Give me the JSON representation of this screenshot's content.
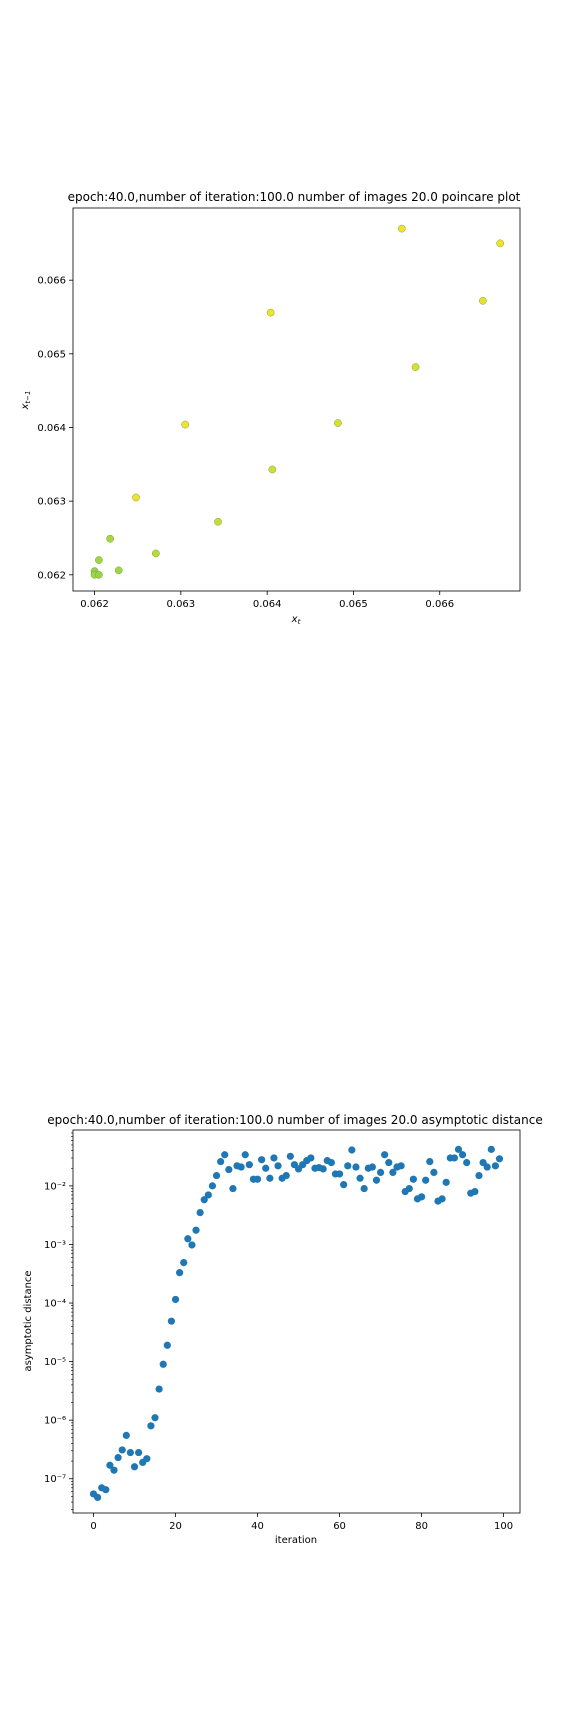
{
  "chart_data": [
    {
      "type": "scatter",
      "title": "epoch:40.0,number of iteration:100.0 number of images 20.0 poincare plot",
      "xlabel": "x_t",
      "ylabel": "x_{t-1}",
      "xlim": [
        0.06175,
        0.06693
      ],
      "ylim": [
        0.06178,
        0.06698
      ],
      "x_ticks": [
        0.062,
        0.063,
        0.064,
        0.065,
        0.066
      ],
      "x_tick_labels": [
        "0.062",
        "0.063",
        "0.064",
        "0.065",
        "0.066"
      ],
      "y_ticks": [
        0.062,
        0.063,
        0.064,
        0.065,
        0.066
      ],
      "y_tick_labels": [
        "0.062",
        "0.063",
        "0.064",
        "0.065",
        "0.066"
      ],
      "colormap": "viridis-yellow-green",
      "points": [
        {
          "x": 0.062,
          "y": 0.06205,
          "c": 0.35
        },
        {
          "x": 0.062,
          "y": 0.062,
          "c": 0.3
        },
        {
          "x": 0.06205,
          "y": 0.0622,
          "c": 0.3
        },
        {
          "x": 0.06205,
          "y": 0.062,
          "c": 0.32
        },
        {
          "x": 0.06218,
          "y": 0.06249,
          "c": 0.28
        },
        {
          "x": 0.06228,
          "y": 0.06206,
          "c": 0.3
        },
        {
          "x": 0.06248,
          "y": 0.06305,
          "c": 0.05
        },
        {
          "x": 0.06271,
          "y": 0.06229,
          "c": 0.22
        },
        {
          "x": 0.06305,
          "y": 0.06404,
          "c": 0.05
        },
        {
          "x": 0.06343,
          "y": 0.06272,
          "c": 0.18
        },
        {
          "x": 0.06404,
          "y": 0.06556,
          "c": 0.05
        },
        {
          "x": 0.06406,
          "y": 0.06343,
          "c": 0.15
        },
        {
          "x": 0.06482,
          "y": 0.06406,
          "c": 0.12
        },
        {
          "x": 0.06556,
          "y": 0.0667,
          "c": 0.05
        },
        {
          "x": 0.06572,
          "y": 0.06482,
          "c": 0.12
        },
        {
          "x": 0.0665,
          "y": 0.06572,
          "c": 0.08
        },
        {
          "x": 0.0667,
          "y": 0.0665,
          "c": 0.05
        }
      ]
    },
    {
      "type": "scatter",
      "title": "epoch:40.0,number of iteration:100.0  number of images 20.0 asymptotic distance",
      "xlabel": "iteration",
      "ylabel": "asymptotic distance",
      "yscale": "log",
      "xlim": [
        -5,
        104
      ],
      "ylim": [
        2.6e-08,
        0.09
      ],
      "x_ticks": [
        0,
        20,
        40,
        60,
        80,
        100
      ],
      "x_tick_labels": [
        "0",
        "20",
        "40",
        "60",
        "80",
        "100"
      ],
      "y_ticks": [
        1e-07,
        1e-06,
        1e-05,
        0.0001,
        0.001,
        0.01
      ],
      "y_tick_labels": [
        "10⁻⁷",
        "10⁻⁶",
        "10⁻⁵",
        "10⁻⁴",
        "10⁻³",
        "10⁻²"
      ],
      "color": "#1f77b4",
      "x": [
        0,
        1,
        2,
        3,
        4,
        5,
        6,
        7,
        8,
        9,
        10,
        11,
        12,
        13,
        14,
        15,
        16,
        17,
        18,
        19,
        20,
        21,
        22,
        23,
        24,
        25,
        26,
        27,
        28,
        29,
        30,
        31,
        32,
        33,
        34,
        35,
        36,
        37,
        38,
        39,
        40,
        41,
        42,
        43,
        44,
        45,
        46,
        47,
        48,
        49,
        50,
        51,
        52,
        53,
        54,
        55,
        56,
        57,
        58,
        59,
        60,
        61,
        62,
        63,
        64,
        65,
        66,
        67,
        68,
        69,
        70,
        71,
        72,
        73,
        74,
        75,
        76,
        77,
        78,
        79,
        80,
        81,
        82,
        83,
        84,
        85,
        86,
        87,
        88,
        89,
        90,
        91,
        92,
        93,
        94,
        95,
        96,
        97,
        98,
        99
      ],
      "y": [
        5.5e-08,
        4.8e-08,
        7e-08,
        6.5e-08,
        1.7e-07,
        1.4e-07,
        2.3e-07,
        3.1e-07,
        5.5e-07,
        2.8e-07,
        1.6e-07,
        2.8e-07,
        1.9e-07,
        2.2e-07,
        8e-07,
        1.1e-06,
        3.4e-06,
        9e-06,
        1.9e-05,
        4.9e-05,
        0.000115,
        0.00033,
        0.00049,
        0.00125,
        0.00098,
        0.00175,
        0.0035,
        0.0058,
        0.007,
        0.01,
        0.015,
        0.026,
        0.034,
        0.019,
        0.009,
        0.022,
        0.021,
        0.034,
        0.023,
        0.013,
        0.013,
        0.028,
        0.02,
        0.0135,
        0.03,
        0.022,
        0.0135,
        0.015,
        0.032,
        0.023,
        0.0195,
        0.023,
        0.027,
        0.03,
        0.02,
        0.0205,
        0.0195,
        0.027,
        0.025,
        0.016,
        0.016,
        0.0105,
        0.022,
        0.041,
        0.021,
        0.0135,
        0.009,
        0.02,
        0.021,
        0.0125,
        0.017,
        0.034,
        0.025,
        0.017,
        0.021,
        0.022,
        0.008,
        0.009,
        0.013,
        0.006,
        0.0065,
        0.0125,
        0.026,
        0.017,
        0.0055,
        0.006,
        0.0115,
        0.03,
        0.03,
        0.042,
        0.034,
        0.025,
        0.0075,
        0.008,
        0.015,
        0.025,
        0.021,
        0.042,
        0.022,
        0.029
      ]
    }
  ]
}
